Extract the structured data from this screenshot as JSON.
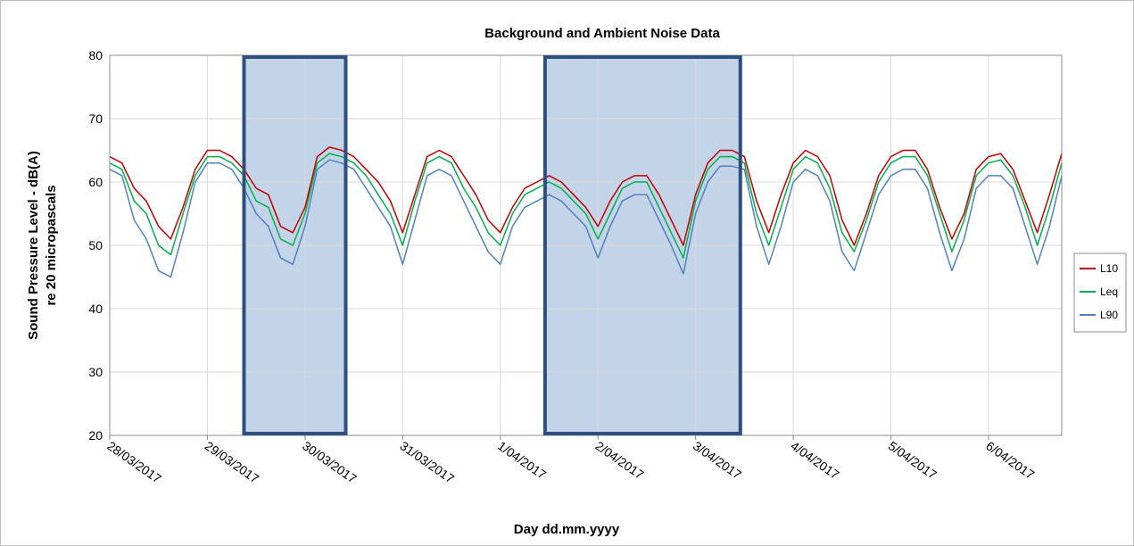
{
  "chart_data": {
    "type": "line",
    "title": "Background and Ambient Noise Data",
    "xlabel": "Day dd.mm.yyyy",
    "ylabel": [
      "Sound Pressure Level - dB(A)",
      "re 20 micropascals"
    ],
    "ylim": [
      20,
      80
    ],
    "yticks": [
      20,
      30,
      40,
      50,
      60,
      70,
      80
    ],
    "xlim": [
      "28/03/2017 00:00",
      "06/04/2017 18:00"
    ],
    "xticks": [
      "28/03/2017",
      "29/03/2017",
      "30/03/2017",
      "31/03/2017",
      "1/04/2017",
      "2/04/2017",
      "3/04/2017",
      "4/04/2017",
      "5/04/2017",
      "6/04/2017"
    ],
    "grid": true,
    "legend_position": "right",
    "colors": {
      "L10": "#c00000",
      "Leq": "#00b050",
      "L90": "#4f81bd",
      "highlight_fill": "#b8cce4",
      "highlight_border": "#2f4f7f"
    },
    "highlighted_periods": [
      {
        "start": "29/03/2017 09:00",
        "end": "30/03/2017 10:00"
      },
      {
        "start": "01/04/2017 11:00",
        "end": "03/04/2017 11:00"
      }
    ],
    "x": [
      "28/03/2017 00:00",
      "28/03/2017 03:00",
      "28/03/2017 06:00",
      "28/03/2017 09:00",
      "28/03/2017 12:00",
      "28/03/2017 15:00",
      "28/03/2017 18:00",
      "28/03/2017 21:00",
      "29/03/2017 00:00",
      "29/03/2017 03:00",
      "29/03/2017 06:00",
      "29/03/2017 09:00",
      "29/03/2017 12:00",
      "29/03/2017 15:00",
      "29/03/2017 18:00",
      "29/03/2017 21:00",
      "30/03/2017 00:00",
      "30/03/2017 03:00",
      "30/03/2017 06:00",
      "30/03/2017 09:00",
      "30/03/2017 12:00",
      "30/03/2017 15:00",
      "30/03/2017 18:00",
      "30/03/2017 21:00",
      "31/03/2017 00:00",
      "31/03/2017 03:00",
      "31/03/2017 06:00",
      "31/03/2017 09:00",
      "31/03/2017 12:00",
      "31/03/2017 15:00",
      "31/03/2017 18:00",
      "31/03/2017 21:00",
      "01/04/2017 00:00",
      "01/04/2017 03:00",
      "01/04/2017 06:00",
      "01/04/2017 09:00",
      "01/04/2017 12:00",
      "01/04/2017 15:00",
      "01/04/2017 18:00",
      "01/04/2017 21:00",
      "02/04/2017 00:00",
      "02/04/2017 03:00",
      "02/04/2017 06:00",
      "02/04/2017 09:00",
      "02/04/2017 12:00",
      "02/04/2017 15:00",
      "02/04/2017 18:00",
      "02/04/2017 21:00",
      "03/04/2017 00:00",
      "03/04/2017 03:00",
      "03/04/2017 06:00",
      "03/04/2017 09:00",
      "03/04/2017 12:00",
      "03/04/2017 15:00",
      "03/04/2017 18:00",
      "03/04/2017 21:00",
      "04/04/2017 00:00",
      "04/04/2017 03:00",
      "04/04/2017 06:00",
      "04/04/2017 09:00",
      "04/04/2017 12:00",
      "04/04/2017 15:00",
      "04/04/2017 18:00",
      "04/04/2017 21:00",
      "05/04/2017 00:00",
      "05/04/2017 03:00",
      "05/04/2017 06:00",
      "05/04/2017 09:00",
      "05/04/2017 12:00",
      "05/04/2017 15:00",
      "05/04/2017 18:00",
      "05/04/2017 21:00",
      "06/04/2017 00:00",
      "06/04/2017 03:00",
      "06/04/2017 06:00",
      "06/04/2017 09:00",
      "06/04/2017 12:00",
      "06/04/2017 15:00",
      "06/04/2017 18:00"
    ],
    "series": [
      {
        "name": "L10",
        "color": "#c00000",
        "values": [
          64,
          63,
          59,
          57,
          53,
          51,
          56,
          62,
          65,
          65,
          64,
          62,
          59,
          58,
          53,
          52,
          56,
          64,
          65.5,
          65,
          64,
          62,
          60,
          57,
          52,
          58,
          64,
          65,
          64,
          61,
          58,
          54,
          52,
          56,
          59,
          60,
          61,
          60,
          58,
          56,
          53,
          57,
          60,
          61,
          61,
          58,
          54,
          50,
          58,
          63,
          65,
          65,
          64,
          57,
          52,
          58,
          63,
          65,
          64,
          61,
          54,
          50,
          55,
          61,
          64,
          65,
          65,
          62,
          56,
          51,
          55,
          62,
          64,
          64.5,
          62,
          57,
          52,
          58,
          64.5
        ]
      },
      {
        "name": "Leq",
        "color": "#00b050",
        "values": [
          63,
          62,
          57,
          55,
          50,
          48.5,
          55,
          61,
          64,
          64,
          63,
          61,
          57,
          56,
          51,
          50,
          55,
          63,
          64.5,
          64,
          63,
          61,
          58,
          55,
          50,
          57,
          63,
          64,
          63,
          59,
          56,
          52,
          50,
          55,
          58,
          59,
          60,
          59,
          57,
          55,
          51,
          55,
          59,
          60,
          60,
          56,
          52,
          48,
          57,
          62,
          64,
          64,
          63,
          55,
          50,
          56,
          62,
          64,
          63,
          59,
          52,
          49,
          54,
          60,
          63,
          64,
          64,
          61,
          55,
          49,
          54,
          61,
          63,
          63.5,
          61,
          56,
          50,
          56,
          63
        ]
      },
      {
        "name": "L90",
        "color": "#4f81bd",
        "values": [
          62,
          61,
          54,
          51,
          46,
          45,
          52,
          60,
          63,
          63,
          62,
          59,
          55,
          53,
          48,
          47,
          53,
          62,
          63.5,
          63,
          62,
          59,
          56,
          53,
          47,
          54,
          61,
          62,
          61,
          57,
          53,
          49,
          47,
          53,
          56,
          57,
          58,
          57,
          55,
          53,
          48,
          53,
          57,
          58,
          58,
          54,
          50,
          45.5,
          55,
          60,
          62.5,
          62.5,
          62,
          53,
          47,
          53,
          60,
          62,
          61,
          57,
          49,
          46,
          52,
          58,
          61,
          62,
          62,
          59,
          52,
          46,
          51,
          59,
          61,
          61,
          59,
          53,
          47,
          53,
          61
        ]
      }
    ]
  }
}
